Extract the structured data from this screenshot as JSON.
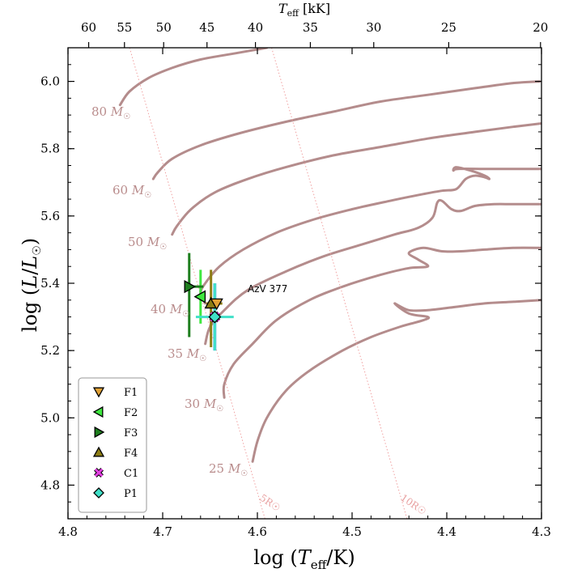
{
  "chart_data": {
    "type": "scatter",
    "title": "",
    "xlabel": "log (T_eff/K)",
    "xlabel_parts": {
      "pre": "log (",
      "T": "T",
      "sub": "eff",
      "post": "/K)"
    },
    "ylabel": "log (L/L☉)",
    "ylabel_parts": {
      "pre": "log (",
      "L1": "L",
      "slash": "/",
      "L2": "L",
      "sun": "☉",
      "post": ")"
    },
    "top_xlabel_parts": {
      "T": "T",
      "sub": "eff",
      "post": " [kK]"
    },
    "xlim": [
      4.8,
      4.3
    ],
    "ylim": [
      4.7,
      6.1
    ],
    "x_ticks": [
      4.8,
      4.7,
      4.6,
      4.5,
      4.4,
      4.3
    ],
    "x_tick_labels": [
      "4.8",
      "4.7",
      "4.6",
      "4.5",
      "4.4",
      "4.3"
    ],
    "y_ticks": [
      4.8,
      5.0,
      5.2,
      5.4,
      5.6,
      5.8,
      6.0
    ],
    "y_tick_labels": [
      "4.8",
      "5.0",
      "5.2",
      "5.4",
      "5.6",
      "5.8",
      "6.0"
    ],
    "top_ticks_kK": [
      60,
      55,
      50,
      45,
      40,
      35,
      30,
      25,
      20
    ],
    "top_tick_labels": [
      "60",
      "55",
      "50",
      "45",
      "40",
      "35",
      "30",
      "25",
      "20"
    ],
    "grid": false,
    "legend_position": "bottom-left",
    "track_color": "#b48c8c",
    "tracks": [
      {
        "label": "80",
        "x": [
          4.745,
          4.735,
          4.715,
          4.69,
          4.66,
          4.62,
          4.59
        ],
        "y": [
          5.93,
          5.97,
          6.01,
          6.04,
          6.065,
          6.085,
          6.1
        ]
      },
      {
        "label": "60",
        "x": [
          4.71,
          4.705,
          4.69,
          4.66,
          4.62,
          4.57,
          4.52,
          4.47,
          4.42,
          4.37,
          4.33,
          4.302
        ],
        "y": [
          5.71,
          5.73,
          5.77,
          5.81,
          5.845,
          5.88,
          5.91,
          5.94,
          5.96,
          5.98,
          5.995,
          6.0
        ]
      },
      {
        "label": "50",
        "x": [
          4.69,
          4.685,
          4.67,
          4.645,
          4.61,
          4.57,
          4.52,
          4.47,
          4.42,
          4.37,
          4.33,
          4.3
        ],
        "y": [
          5.545,
          5.57,
          5.62,
          5.67,
          5.71,
          5.745,
          5.78,
          5.805,
          5.83,
          5.85,
          5.865,
          5.875
        ]
      },
      {
        "label": "40",
        "x": [
          4.655,
          4.66,
          4.655,
          4.64,
          4.615,
          4.58,
          4.54,
          4.5,
          4.46,
          4.425,
          4.405,
          4.39,
          4.38,
          4.37,
          4.36,
          4.355,
          4.36,
          4.375,
          4.39,
          4.393,
          4.388,
          4.36,
          4.33,
          4.3
        ],
        "y": [
          5.34,
          5.37,
          5.4,
          5.45,
          5.5,
          5.55,
          5.59,
          5.62,
          5.645,
          5.665,
          5.675,
          5.68,
          5.71,
          5.72,
          5.715,
          5.71,
          5.72,
          5.735,
          5.745,
          5.735,
          5.74,
          5.74,
          5.74,
          5.74
        ]
      },
      {
        "label": "35",
        "x": [
          4.655,
          4.65,
          4.635,
          4.61,
          4.57,
          4.53,
          4.49,
          4.455,
          4.43,
          4.415,
          4.41,
          4.405,
          4.395,
          4.385,
          4.37,
          4.35,
          4.33,
          4.3
        ],
        "y": [
          5.22,
          5.27,
          5.32,
          5.38,
          5.435,
          5.48,
          5.515,
          5.545,
          5.565,
          5.595,
          5.64,
          5.645,
          5.62,
          5.615,
          5.63,
          5.635,
          5.635,
          5.635
        ]
      },
      {
        "label": "30",
        "x": [
          4.635,
          4.635,
          4.625,
          4.605,
          4.58,
          4.545,
          4.51,
          4.47,
          4.44,
          4.42,
          4.43,
          4.44,
          4.425,
          4.405,
          4.385,
          4.36,
          4.33,
          4.3
        ],
        "y": [
          5.06,
          5.1,
          5.16,
          5.22,
          5.29,
          5.35,
          5.39,
          5.425,
          5.445,
          5.45,
          5.47,
          5.49,
          5.505,
          5.495,
          5.495,
          5.5,
          5.505,
          5.505
        ]
      },
      {
        "label": "25",
        "x": [
          4.605,
          4.6,
          4.59,
          4.57,
          4.545,
          4.51,
          4.48,
          4.45,
          4.425,
          4.42,
          4.44,
          4.455,
          4.44,
          4.42,
          4.39,
          4.36,
          4.33,
          4.3
        ],
        "y": [
          4.87,
          4.93,
          5.0,
          5.08,
          5.14,
          5.2,
          5.24,
          5.27,
          5.29,
          5.3,
          5.31,
          5.34,
          5.32,
          5.32,
          5.33,
          5.34,
          5.345,
          5.35
        ]
      }
    ],
    "track_labels": [
      "80 M☉",
      "60 M☉",
      "50 M☉",
      "40 M☉",
      "35 M☉",
      "30 M☉",
      "25 M☉"
    ],
    "isoradii": [
      {
        "label": "5R☉",
        "from": [
          4.735,
          6.1
        ],
        "to": [
          4.592,
          4.7
        ]
      },
      {
        "label": "10R☉",
        "from": [
          4.585,
          6.1
        ],
        "to": [
          4.442,
          4.7
        ]
      }
    ],
    "annotation": "AzV 377",
    "series": [
      {
        "name": "F1",
        "marker": "triangle-down",
        "color": "#e0a034",
        "x": 4.643,
        "y": 5.34,
        "xerr": [
          0,
          0
        ],
        "yerr": [
          0,
          0
        ]
      },
      {
        "name": "F2",
        "marker": "triangle-left",
        "color": "#3ee83e",
        "x": 4.66,
        "y": 5.36,
        "xerr": [
          0.005,
          0.005
        ],
        "yerr": [
          0.08,
          0.08
        ]
      },
      {
        "name": "F3",
        "marker": "triangle-right",
        "color": "#1e7e1e",
        "x": 4.672,
        "y": 5.39,
        "xerr": [
          0.015,
          0.005
        ],
        "yerr": [
          0.15,
          0.1
        ]
      },
      {
        "name": "F4",
        "marker": "triangle-up",
        "color": "#8c7c14",
        "x": 4.649,
        "y": 5.34,
        "xerr": [
          0.012,
          0.005
        ],
        "yerr": [
          0.13,
          0.1
        ]
      },
      {
        "name": "C1",
        "marker": "x",
        "color": "#e040e0",
        "x": 4.645,
        "y": 5.3,
        "xerr": [
          0,
          0
        ],
        "yerr": [
          0,
          0
        ]
      },
      {
        "name": "P1",
        "marker": "diamond",
        "color": "#40e0c8",
        "x": 4.645,
        "y": 5.3,
        "xerr": [
          0.02,
          0.02
        ],
        "yerr": [
          0.1,
          0.1
        ]
      }
    ],
    "p1_blue_bar_color": "#7ab4e8"
  }
}
